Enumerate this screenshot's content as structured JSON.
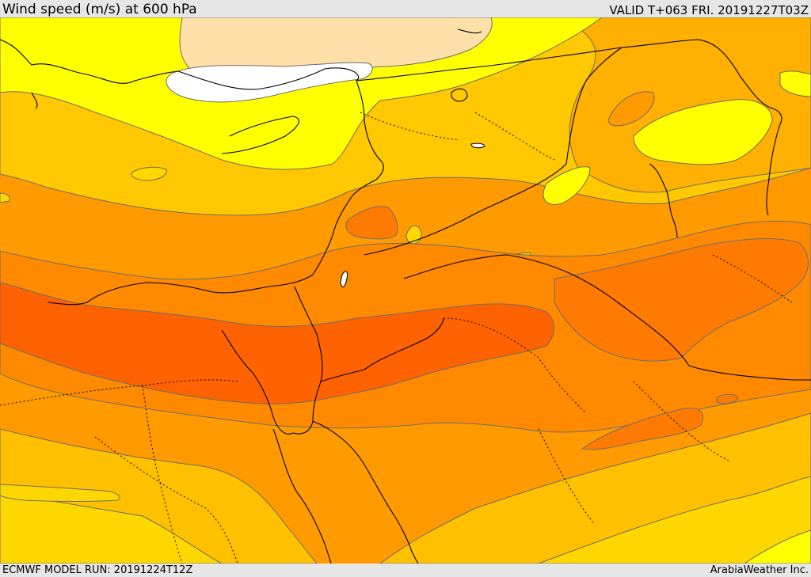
{
  "header": {
    "title": "Wind speed (m/s) at 600 hPa",
    "valid": "VALID T+063 FRI. 20191227T03Z"
  },
  "footer": {
    "model_run": "ECMWF MODEL RUN: 20191224T12Z",
    "credit": "ArabiaWeather Inc."
  },
  "map": {
    "variable": "wind speed",
    "units": "m/s",
    "level": "600 hPa",
    "palette": {
      "calm": "#ffffff",
      "light": "#fde0a8",
      "yellow": "#ffff00",
      "gold": "#ffd700",
      "amber": "#ffc300",
      "orange_light": "#ffa500",
      "orange": "#ff9000",
      "orange_dark": "#ff7a00",
      "red_orange": "#ff6200",
      "contour": "#6e6e6e",
      "coast": "#000000"
    }
  }
}
